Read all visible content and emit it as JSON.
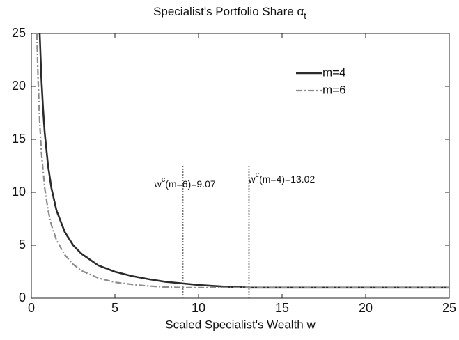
{
  "chart_data": {
    "type": "line",
    "title": "Specialist's Portfolio Share α",
    "title_subscript": "t",
    "xlabel": "Scaled Specialist's Wealth w",
    "xlim": [
      0,
      25
    ],
    "ylim": [
      0,
      25
    ],
    "xticks": [
      0,
      5,
      10,
      15,
      20,
      25
    ],
    "yticks": [
      0,
      5,
      10,
      15,
      20,
      25
    ],
    "legend": "upper right",
    "series": [
      {
        "name": "m=4",
        "color": "#2b2b2b",
        "style": "solid",
        "x": [
          0.5,
          0.6,
          0.7,
          0.8,
          1,
          1.2,
          1.5,
          2,
          2.5,
          3,
          4,
          5,
          6,
          7,
          8,
          10,
          11.5,
          13.02,
          15,
          20,
          25
        ],
        "values": [
          25,
          20.8,
          17.9,
          15.6,
          12.5,
          10.4,
          8.3,
          6.25,
          5,
          4.2,
          3.1,
          2.5,
          2.1,
          1.8,
          1.55,
          1.25,
          1.1,
          1,
          1,
          1,
          1
        ]
      },
      {
        "name": "m=6",
        "color": "#8c8c8c",
        "style": "dashdot",
        "x": [
          0.33,
          0.4,
          0.5,
          0.6,
          0.8,
          1,
          1.2,
          1.5,
          2,
          2.5,
          3,
          4,
          5,
          6,
          7,
          8,
          9.07,
          10,
          15,
          20,
          25
        ],
        "values": [
          25,
          20.8,
          16.6,
          13.8,
          10.4,
          8.3,
          6.9,
          5.5,
          4.1,
          3.2,
          2.6,
          1.9,
          1.5,
          1.3,
          1.15,
          1.05,
          1,
          1,
          1,
          1,
          1
        ]
      }
    ],
    "annotations": [
      {
        "x": 9.07,
        "y_top": 12.5,
        "color": "#777777",
        "text": "w",
        "superscript": "c",
        "rest": "(m=6)=9.07"
      },
      {
        "x": 13.02,
        "y_top": 12.5,
        "color": "#111111",
        "text": "w",
        "superscript": "c",
        "rest": "(m=4)=13.02"
      }
    ]
  }
}
